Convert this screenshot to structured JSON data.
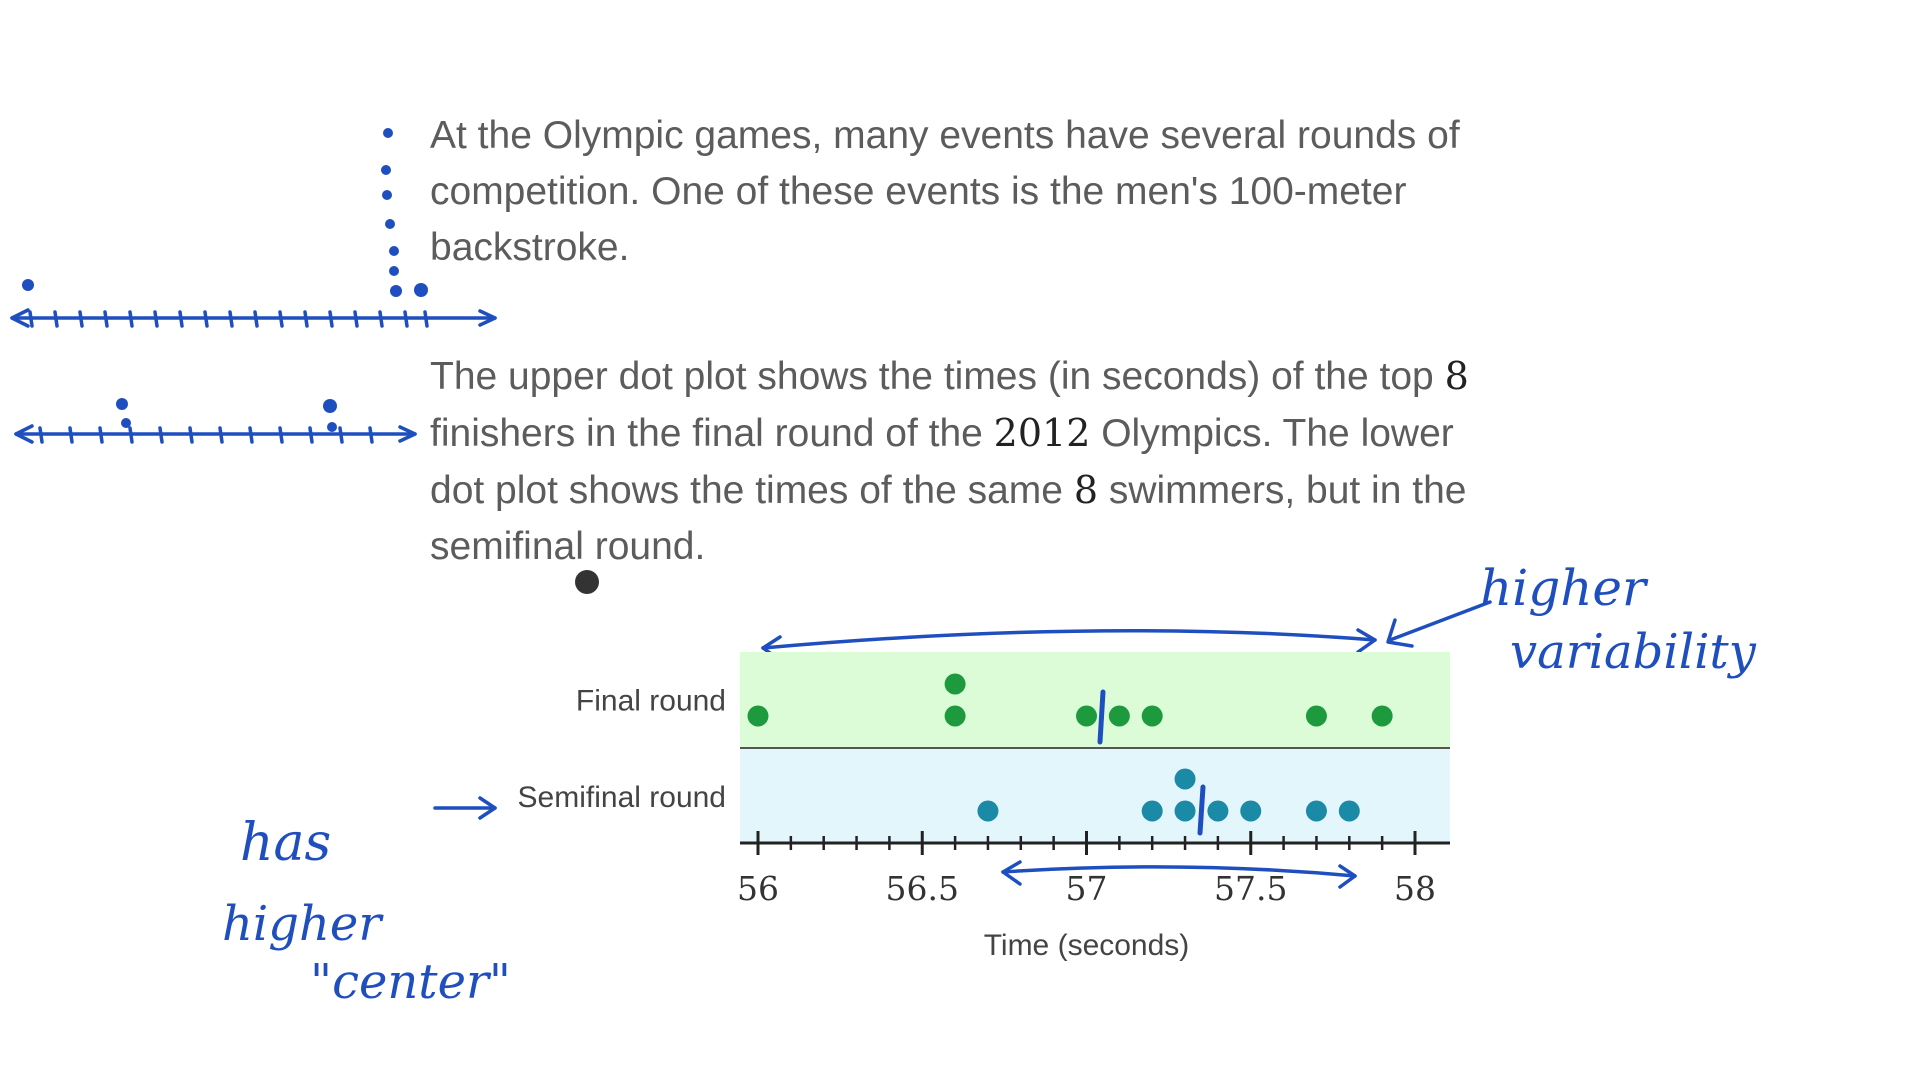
{
  "problem": {
    "p1": "At the Olympic games, many events have several rounds of competition. One of these events is the men's 100-meter backstroke.",
    "p2_parts": [
      "The upper dot plot shows the times (in seconds) of the top ",
      "8",
      " finishers in the final round of the ",
      "2012",
      " Olympics. The lower dot plot shows the times of the same ",
      "8",
      " swimmers, but in the semifinal round."
    ]
  },
  "chart_data": {
    "type": "scatter",
    "subtype": "dot-plot",
    "rows": [
      {
        "name": "Final round",
        "values": [
          56.0,
          56.6,
          56.6,
          57.0,
          57.1,
          57.2,
          57.7,
          57.9
        ],
        "color": "#1e9a3e",
        "band": "#dcfcd8"
      },
      {
        "name": "Semifinal round",
        "values": [
          56.7,
          57.2,
          57.3,
          57.3,
          57.4,
          57.5,
          57.7,
          57.8
        ],
        "color": "#1b8aa6",
        "band": "#e3f6fc"
      }
    ],
    "xlim": [
      56,
      58
    ],
    "major_ticks": [
      56,
      56.5,
      57,
      57.5,
      58
    ],
    "tick_labels": [
      "56",
      "56.5",
      "57",
      "57.5",
      "58"
    ],
    "minor_step": 0.1,
    "xlabel": "Time (seconds)"
  },
  "annotations": {
    "note_variability_1": "higher",
    "note_variability_2": "variability",
    "note_center_1": "has",
    "note_center_2": "higher",
    "note_center_3": "\"center\"",
    "ink_color": "#1f4fbf"
  }
}
